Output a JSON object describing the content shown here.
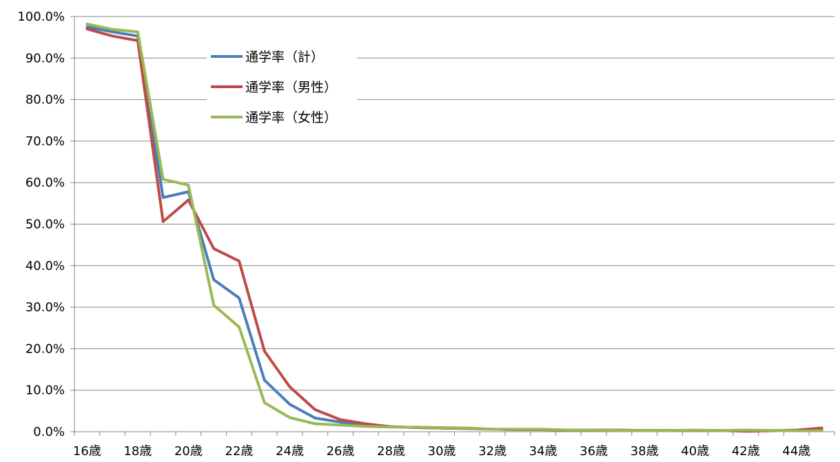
{
  "chart_data": {
    "type": "line",
    "title": "",
    "xlabel": "",
    "ylabel": "",
    "x": [
      16,
      17,
      18,
      19,
      20,
      21,
      22,
      23,
      24,
      25,
      26,
      27,
      28,
      29,
      30,
      31,
      32,
      33,
      34,
      35,
      36,
      37,
      38,
      39,
      40,
      41,
      42,
      43,
      44,
      45
    ],
    "x_tick_labels": [
      {
        "x": 16,
        "label": "16歳"
      },
      {
        "x": 18,
        "label": "18歳"
      },
      {
        "x": 20,
        "label": "20歳"
      },
      {
        "x": 22,
        "label": "22歳"
      },
      {
        "x": 24,
        "label": "24歳"
      },
      {
        "x": 26,
        "label": "26歳"
      },
      {
        "x": 28,
        "label": "28歳"
      },
      {
        "x": 30,
        "label": "30歳"
      },
      {
        "x": 32,
        "label": "32歳"
      },
      {
        "x": 34,
        "label": "34歳"
      },
      {
        "x": 36,
        "label": "36歳"
      },
      {
        "x": 38,
        "label": "38歳"
      },
      {
        "x": 40,
        "label": "40歳"
      },
      {
        "x": 42,
        "label": "42歳"
      },
      {
        "x": 44,
        "label": "44歳"
      }
    ],
    "y_ticks": [
      0,
      10,
      20,
      30,
      40,
      50,
      60,
      70,
      80,
      90,
      100
    ],
    "y_tick_labels": [
      "0.0%",
      "10.0%",
      "20.0%",
      "30.0%",
      "40.0%",
      "50.0%",
      "60.0%",
      "70.0%",
      "80.0%",
      "90.0%",
      "100.0%"
    ],
    "ylim": [
      0,
      100
    ],
    "grid": true,
    "legend_position": "upper-center-left",
    "series": [
      {
        "name": "通学率（計）",
        "color": "#4a7ebb",
        "values": [
          97.5,
          96.3,
          95.3,
          56.4,
          57.8,
          36.6,
          32.2,
          12.4,
          6.6,
          3.3,
          2.3,
          1.6,
          1.2,
          1.0,
          0.9,
          0.8,
          0.6,
          0.5,
          0.5,
          0.4,
          0.4,
          0.3,
          0.3,
          0.3,
          0.3,
          0.3,
          0.2,
          0.3,
          0.3,
          0.5
        ]
      },
      {
        "name": "通学率（男性）",
        "color": "#be4b48",
        "values": [
          97.0,
          95.3,
          94.2,
          50.6,
          55.8,
          44.1,
          41.1,
          19.4,
          10.8,
          5.3,
          2.9,
          1.9,
          1.2,
          1.0,
          0.9,
          0.8,
          0.6,
          0.5,
          0.5,
          0.4,
          0.4,
          0.4,
          0.3,
          0.3,
          0.3,
          0.3,
          0.1,
          0.2,
          0.4,
          0.9
        ]
      },
      {
        "name": "通学率（女性）",
        "color": "#98b954",
        "values": [
          98.2,
          96.9,
          96.3,
          60.8,
          59.4,
          30.5,
          25.2,
          7.0,
          3.4,
          1.9,
          1.6,
          1.3,
          1.1,
          1.1,
          1.0,
          0.9,
          0.6,
          0.6,
          0.6,
          0.4,
          0.4,
          0.3,
          0.3,
          0.3,
          0.4,
          0.3,
          0.4,
          0.3,
          0.2,
          0.2
        ]
      }
    ]
  }
}
